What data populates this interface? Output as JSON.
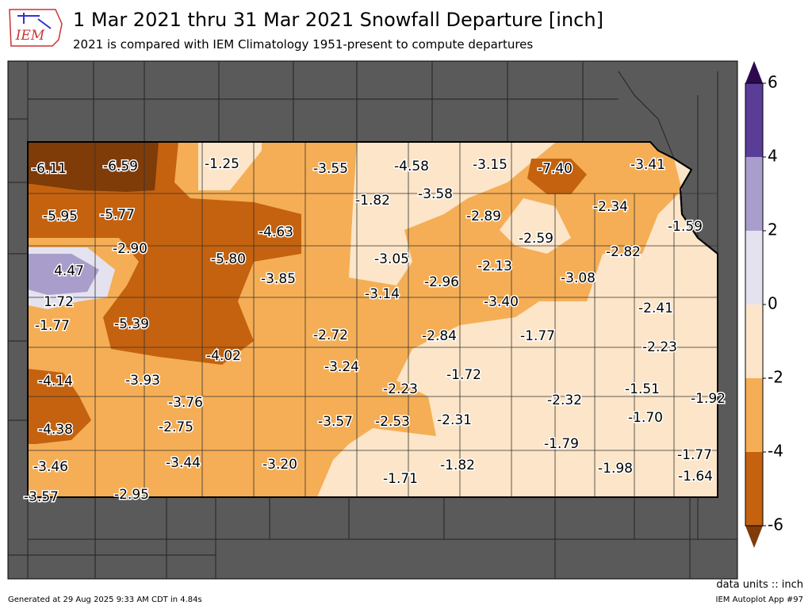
{
  "header": {
    "title": "1 Mar 2021 thru 31 Mar 2021 Snowfall Departure [inch]",
    "subtitle": "2021 is compared with IEM Climatology 1951-present to compute departures",
    "logo": "IEM"
  },
  "map": {
    "stations": [
      "-6.11",
      "-6.59",
      "-1.25",
      "-3.55",
      "-4.58",
      "-3.15",
      "-7.40",
      "-3.41",
      "-1.82",
      "-3.58",
      "-5.95",
      "-5.77",
      "-2.89",
      "-2.34",
      "-4.63",
      "-1.59",
      "-2.59",
      "-2.90",
      "-5.80",
      "-3.05",
      "-2.82",
      "-2.13",
      "4.47",
      "-3.85",
      "-2.96",
      "-3.08",
      "-3.14",
      "-3.40",
      "1.72",
      "-2.41",
      "-1.77",
      "-5.39",
      "-2.72",
      "-2.84",
      "-1.77",
      "-2.23",
      "-4.02",
      "-3.24",
      "-1.72",
      "-4.14",
      "-3.93",
      "-2.23",
      "-1.51",
      "-3.76",
      "-2.32",
      "-1.92",
      "-4.38",
      "-2.75",
      "-3.57",
      "-2.53",
      "-2.31",
      "-1.70",
      "-1.79",
      "-1.77",
      "-3.46",
      "-3.44",
      "-3.20",
      "-1.82",
      "-1.98",
      "-1.71",
      "-1.64",
      "-3.57",
      "-2.95"
    ]
  },
  "colorbar": {
    "ticks": [
      6,
      4,
      2,
      0,
      -2,
      -4,
      -6
    ],
    "colors": [
      "#5a3d96",
      "#a99ecb",
      "#e4e2ef",
      "#fce5c8",
      "#f5ae55",
      "#c4620f"
    ],
    "over_color": "#2d0a4f",
    "under_color": "#7f3b08"
  },
  "footer": {
    "generated": "Generated at 29 Aug 2025 9:33 AM CDT in 4.84s",
    "units": "data units :: inch",
    "app": "IEM Autoplot App #97"
  }
}
